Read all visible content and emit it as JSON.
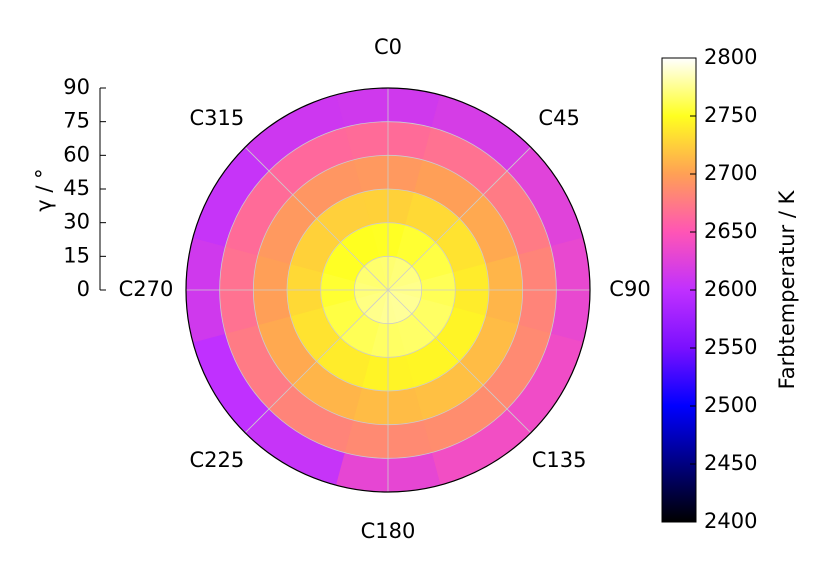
{
  "chart_data": {
    "type": "polar-heatmap",
    "categories": [
      "C0",
      "C45",
      "C90",
      "C135",
      "C180",
      "C225",
      "C270",
      "C315"
    ],
    "theta": [
      0,
      30,
      60,
      90,
      120,
      150,
      180,
      210,
      240,
      270,
      300,
      330
    ],
    "r": [
      7.5,
      22.5,
      37.5,
      52.5,
      67.5,
      82.5
    ],
    "values": [
      [
        2768,
        2751,
        2726,
        2695,
        2665,
        2612
      ],
      [
        2770,
        2754,
        2730,
        2699,
        2669,
        2617
      ],
      [
        2772,
        2758,
        2735,
        2705,
        2675,
        2625
      ],
      [
        2774,
        2762,
        2740,
        2711,
        2681,
        2632
      ],
      [
        2776,
        2765,
        2744,
        2715,
        2685,
        2638
      ],
      [
        2777,
        2766,
        2745,
        2717,
        2687,
        2640
      ],
      [
        2776,
        2765,
        2744,
        2715,
        2685,
        2630
      ],
      [
        2774,
        2762,
        2740,
        2711,
        2681,
        2605
      ],
      [
        2772,
        2758,
        2735,
        2705,
        2675,
        2600
      ],
      [
        2770,
        2754,
        2730,
        2699,
        2669,
        2612
      ],
      [
        2768,
        2751,
        2726,
        2695,
        2665,
        2605
      ],
      [
        2767,
        2750,
        2725,
        2693,
        2663,
        2610
      ]
    ],
    "ylabel": "γ / °",
    "ylim": [
      0,
      90
    ],
    "yticks": [
      0,
      15,
      30,
      45,
      60,
      75,
      90
    ],
    "zlabel": "Farbtemperatur / K",
    "zlim": [
      2400,
      2800
    ],
    "zticks": [
      2400,
      2450,
      2500,
      2550,
      2600,
      2650,
      2700,
      2750,
      2800
    ],
    "colormap": [
      "#000000",
      "#000080",
      "#0000ff",
      "#7a10ff",
      "#c030ff",
      "#ff55b5",
      "#ffa055",
      "#ffff20",
      "#ffffff"
    ],
    "grid": true
  }
}
